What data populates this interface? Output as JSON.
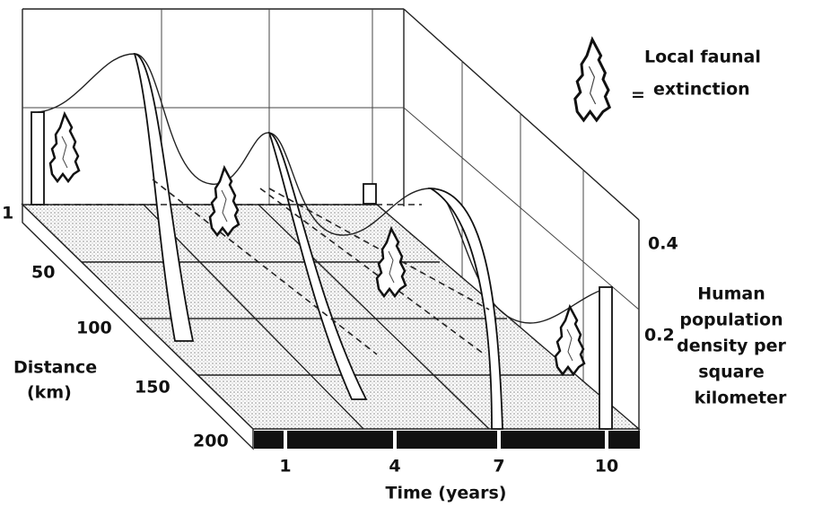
{
  "legend": {
    "label_lines": [
      "Local faunal",
      "extinction"
    ],
    "equals": "="
  },
  "distance_axis": {
    "ticks": [
      "1",
      "50",
      "100",
      "150",
      "200"
    ],
    "label_lines": [
      "Distance",
      "(km)"
    ]
  },
  "time_axis": {
    "ticks": [
      "1",
      "4",
      "7",
      "10"
    ],
    "label": "Time (years)"
  },
  "density_axis": {
    "ticks": [
      "0.4",
      "0.2"
    ],
    "label_lines": [
      "Human",
      "population",
      "density per",
      "square",
      "kilometer"
    ]
  }
}
